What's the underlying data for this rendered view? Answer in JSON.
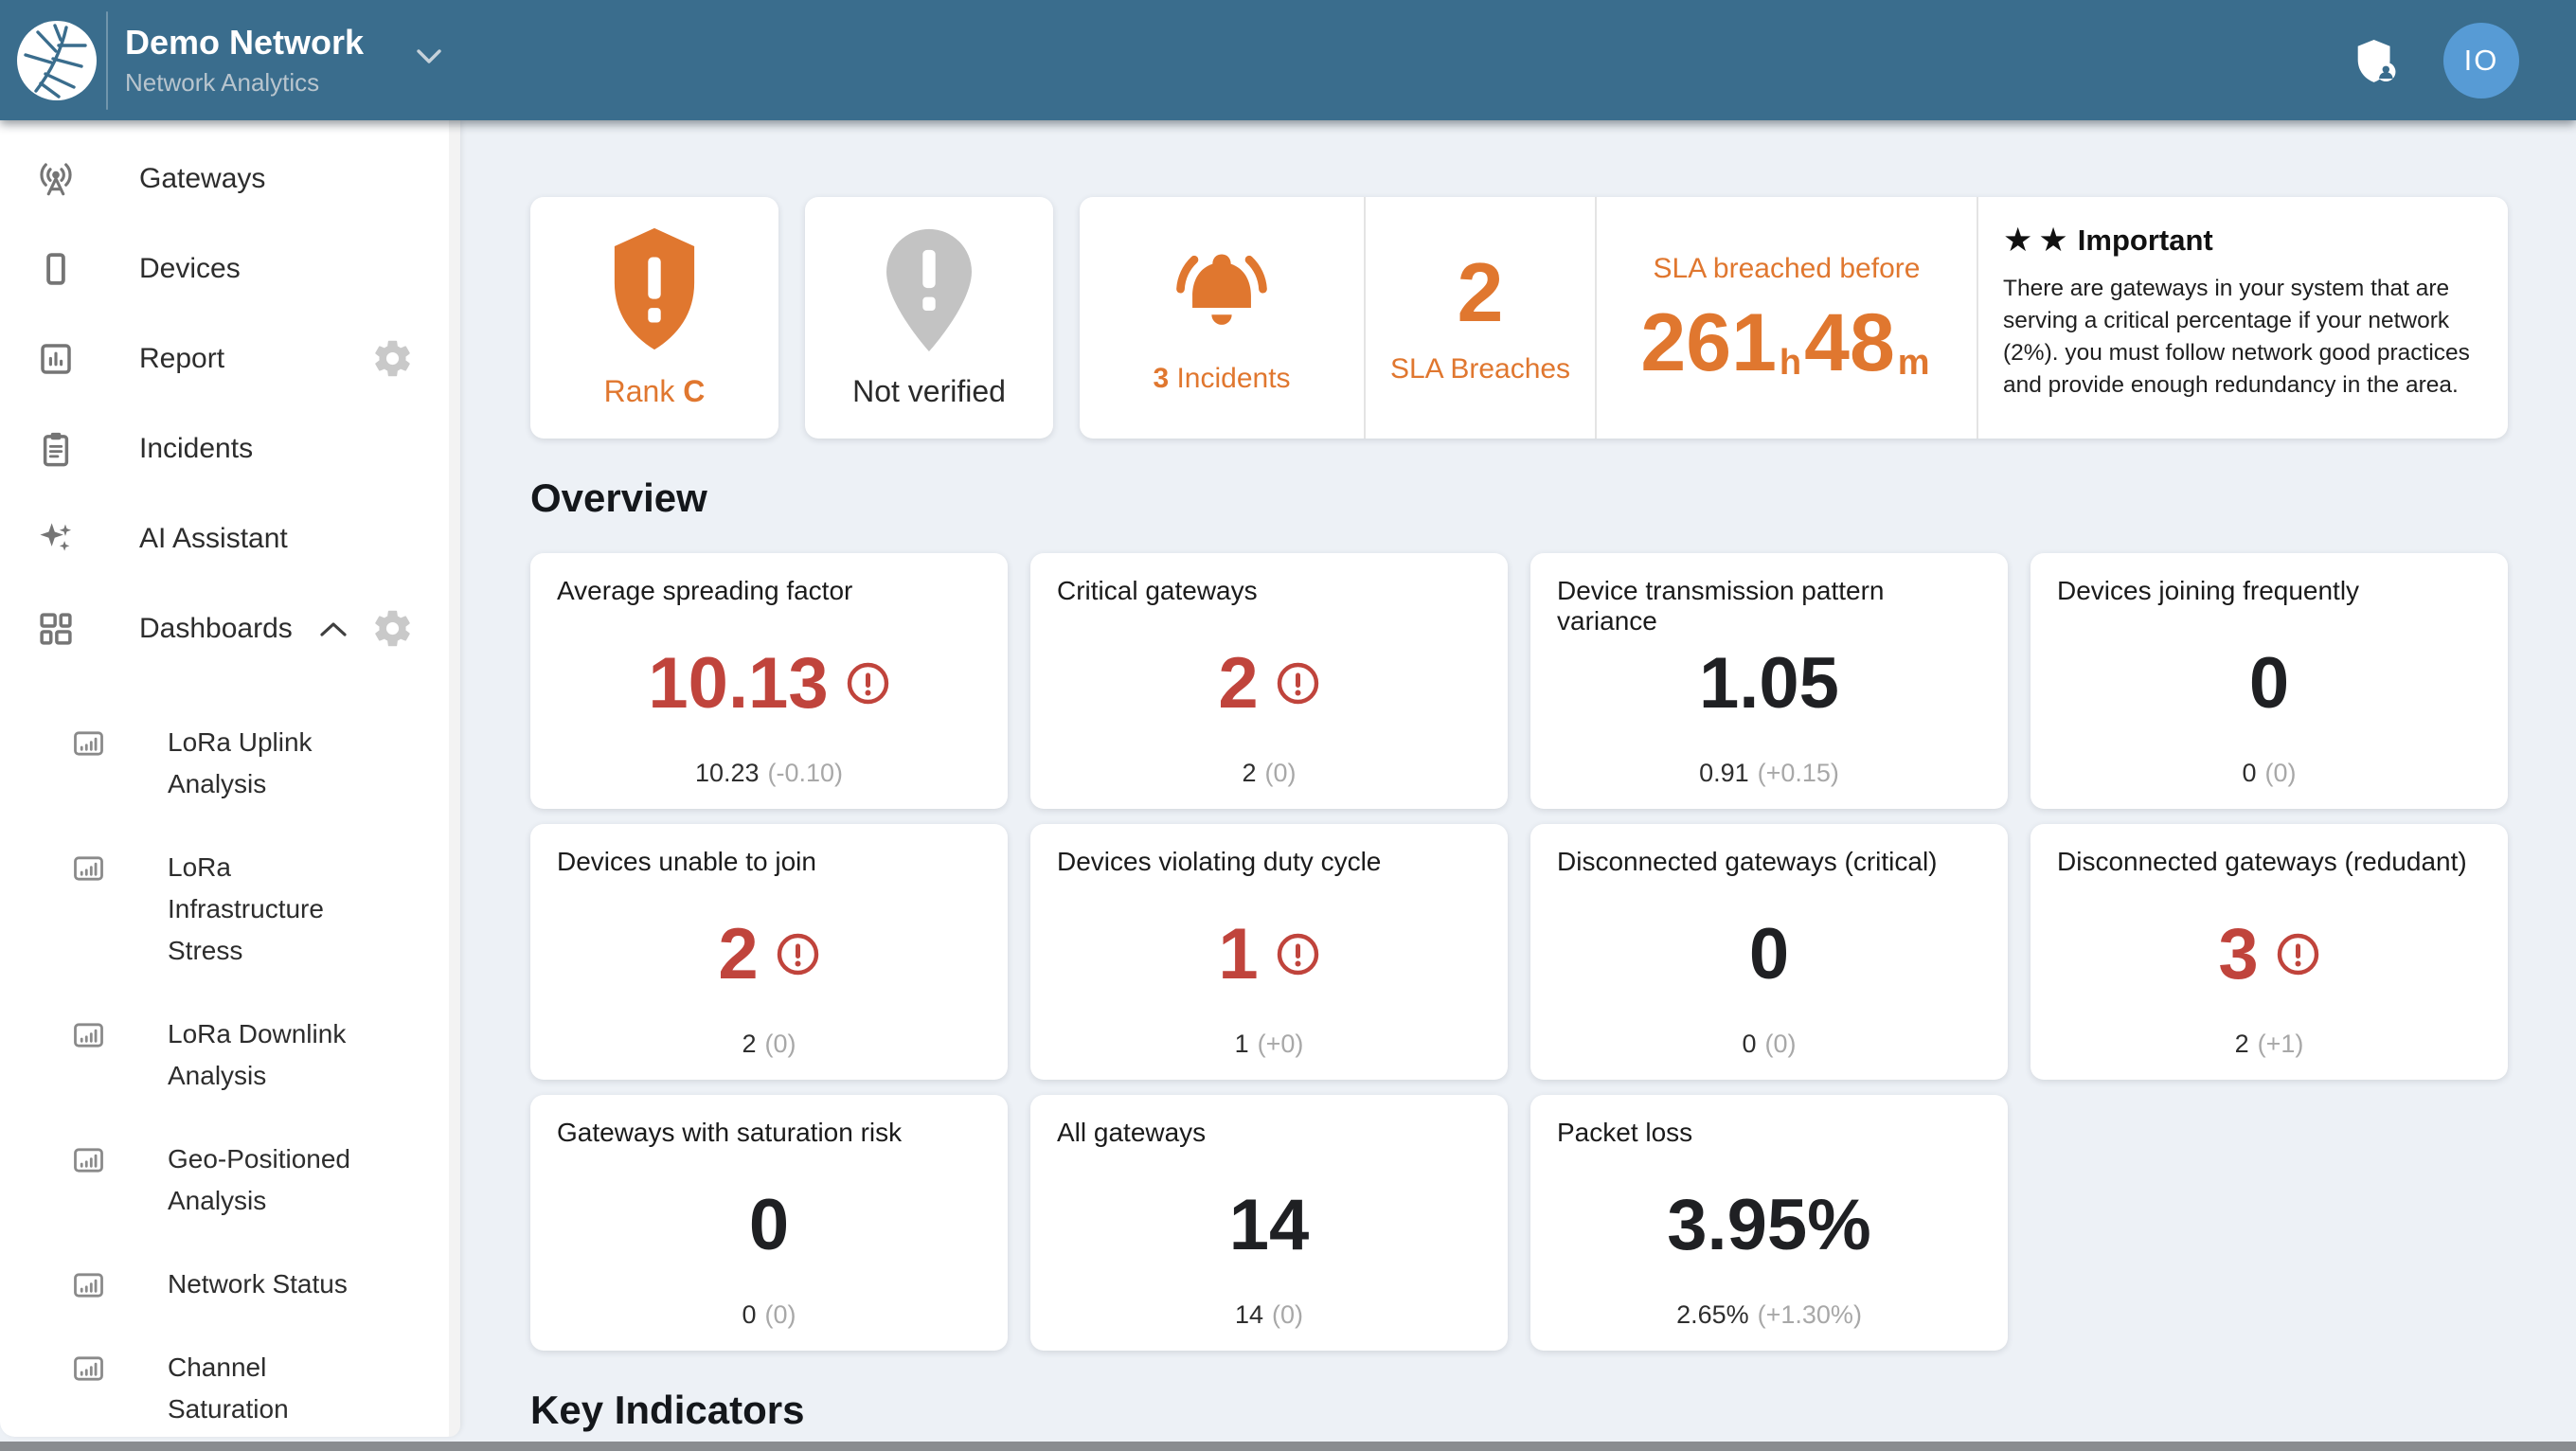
{
  "colors": {
    "header_blue": "#3a6d8d",
    "accent_orange": "#e0772f",
    "alert_red": "#c0443c",
    "avatar_blue": "#579bd5",
    "page_bg": "#edf1f6"
  },
  "header": {
    "org_name": "Demo Network",
    "app_name": "Network Analytics",
    "avatar_text": "IO"
  },
  "sidebar": {
    "items": [
      {
        "label": "Gateways",
        "icon": "antenna"
      },
      {
        "label": "Devices",
        "icon": "device"
      },
      {
        "label": "Report",
        "icon": "report",
        "gear": true
      },
      {
        "label": "Incidents",
        "icon": "clipboard"
      },
      {
        "label": "AI Assistant",
        "icon": "sparkles"
      },
      {
        "label": "Dashboards",
        "icon": "grid",
        "gear": true,
        "expanded": true
      }
    ],
    "dashboard_items": [
      "LoRa Uplink Analysis",
      "LoRa Infrastructure Stress",
      "LoRa Downlink Analysis",
      "Geo-Positioned Analysis",
      "Network Status",
      "Channel Saturation"
    ]
  },
  "status": {
    "rank": {
      "prefix": "Rank",
      "value": "C"
    },
    "verification": {
      "label": "Not verified"
    },
    "incidents": {
      "count": "3",
      "label": "Incidents"
    },
    "sla_breaches": {
      "value": "2",
      "label": "SLA Breaches"
    },
    "sla_breached_before": {
      "label": "SLA breached before",
      "hours": "261",
      "hours_unit": "h",
      "minutes": "48",
      "minutes_unit": "m"
    },
    "important": {
      "title": "Important",
      "body": "There are gateways in your system that are serving a critical percentage if your network (2%). you must follow network good practices and provide enough redundancy in the area."
    }
  },
  "overview": {
    "title": "Overview",
    "cards": [
      {
        "title": "Average spreading factor",
        "value": "10.13",
        "alert": true,
        "prev": "10.23",
        "delta": "(-0.10)"
      },
      {
        "title": "Critical gateways",
        "value": "2",
        "alert": true,
        "prev": "2",
        "delta": "(0)"
      },
      {
        "title": "Device transmission pattern variance",
        "value": "1.05",
        "alert": false,
        "prev": "0.91",
        "delta": "(+0.15)"
      },
      {
        "title": "Devices joining frequently",
        "value": "0",
        "alert": false,
        "prev": "0",
        "delta": "(0)"
      },
      {
        "title": "Devices unable to join",
        "value": "2",
        "alert": true,
        "prev": "2",
        "delta": "(0)"
      },
      {
        "title": "Devices violating duty cycle",
        "value": "1",
        "alert": true,
        "prev": "1",
        "delta": "(+0)"
      },
      {
        "title": "Disconnected gateways (critical)",
        "value": "0",
        "alert": false,
        "prev": "0",
        "delta": "(0)"
      },
      {
        "title": "Disconnected gateways (redudant)",
        "value": "3",
        "alert": true,
        "prev": "2",
        "delta": "(+1)"
      },
      {
        "title": "Gateways with saturation risk",
        "value": "0",
        "alert": false,
        "prev": "0",
        "delta": "(0)"
      },
      {
        "title": "All gateways",
        "value": "14",
        "alert": false,
        "prev": "14",
        "delta": "(0)"
      },
      {
        "title": "Packet loss",
        "value": "3.95%",
        "alert": false,
        "prev": "2.65%",
        "delta": "(+1.30%)"
      }
    ]
  },
  "key_indicators": {
    "title": "Key Indicators"
  }
}
